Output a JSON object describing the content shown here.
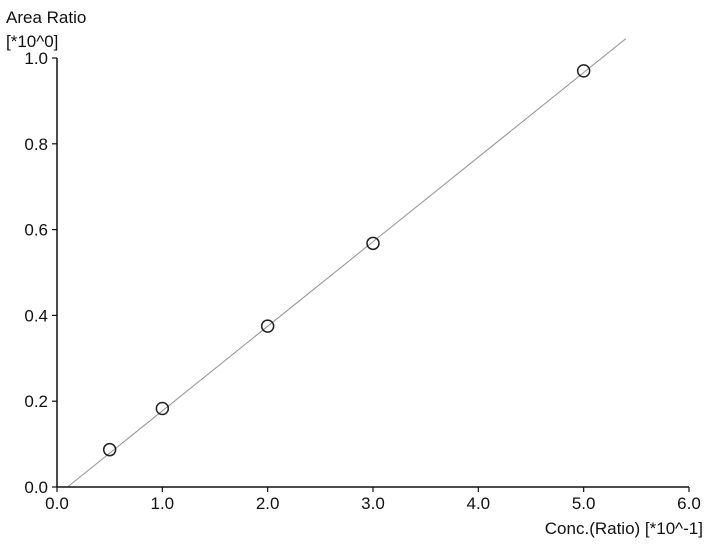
{
  "chart_data": {
    "type": "scatter",
    "ylabel": "Area Ratio",
    "ylabel_scale": "[*10^0]",
    "xlabel": "Conc.(Ratio) [*10^-1]",
    "xlim": [
      0.0,
      6.0
    ],
    "ylim": [
      0.0,
      1.0
    ],
    "x_ticks": [
      "0.0",
      "1.0",
      "2.0",
      "3.0",
      "4.0",
      "5.0",
      "6.0"
    ],
    "y_ticks": [
      "0.0",
      "0.2",
      "0.4",
      "0.6",
      "0.8",
      "1.0"
    ],
    "grid": false,
    "points": [
      {
        "x": 0.5,
        "y": 0.087
      },
      {
        "x": 1.0,
        "y": 0.183
      },
      {
        "x": 2.0,
        "y": 0.375
      },
      {
        "x": 3.0,
        "y": 0.568
      },
      {
        "x": 5.0,
        "y": 0.97
      }
    ],
    "fit_line": {
      "x_start": 0.1,
      "y_start": 0.0,
      "x_end": 5.4,
      "y_end": 1.045
    },
    "colors": {
      "points": "#222222",
      "line": "#9a9a9a",
      "axes": "#111111"
    }
  }
}
